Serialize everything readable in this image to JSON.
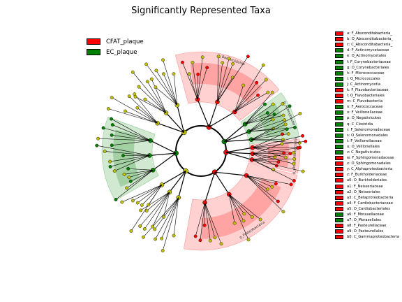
{
  "chart_data": {
    "type": "cladogram",
    "title": "Significantly Represented Taxa",
    "colors": {
      "CFAT_plaque": "#ff0000",
      "EC_plaque": "#008000",
      "neutral": "#c0c000"
    },
    "legend": {
      "placement": "top-left",
      "entries": [
        {
          "name": "CFAT_plaque",
          "color": "#ff0000"
        },
        {
          "name": "EC_plaque",
          "color": "#008000"
        }
      ]
    },
    "clades": [
      {
        "label": "p_Bacteroidetes",
        "group": "CFAT_plaque",
        "start_deg": -105,
        "end_deg": -38
      },
      {
        "label": "p_Actinobacteria",
        "group": "EC_plaque",
        "start_deg": -36,
        "end_deg": -8
      },
      {
        "label": "p_Abscontidibacteria",
        "group": "CFAT_plaque",
        "start_deg": -7,
        "end_deg": 13
      },
      {
        "label": "p_Proteobacteria",
        "group": "CFAT_plaque",
        "start_deg": 14,
        "end_deg": 100
      },
      {
        "label": "",
        "group": "EC_plaque",
        "start_deg": 150,
        "end_deg": 200
      }
    ],
    "taxa_key": [
      {
        "letter": "a",
        "label": "F_Absconditabacteria_",
        "group": "CFAT_plaque"
      },
      {
        "letter": "b",
        "label": "O_Absconditabacteria_",
        "group": "CFAT_plaque"
      },
      {
        "letter": "c",
        "label": "C_Absconditabacteria_",
        "group": "CFAT_plaque"
      },
      {
        "letter": "d",
        "label": "F_Actinomycetaceae",
        "group": "EC_plaque"
      },
      {
        "letter": "e",
        "label": "O_Actinomycetales",
        "group": "EC_plaque"
      },
      {
        "letter": "f",
        "label": "F_Corynebacteriaceae",
        "group": "EC_plaque"
      },
      {
        "letter": "g",
        "label": "O_Corynebacteriales",
        "group": "EC_plaque"
      },
      {
        "letter": "h",
        "label": "F_Micrococcaceae",
        "group": "EC_plaque"
      },
      {
        "letter": "i",
        "label": "O_Micrococcales",
        "group": "EC_plaque"
      },
      {
        "letter": "j",
        "label": "C_Actinomycetia",
        "group": "EC_plaque"
      },
      {
        "letter": "k",
        "label": "F_Flavobacteriaceae",
        "group": "CFAT_plaque"
      },
      {
        "letter": "l",
        "label": "O_Flavobacteriales",
        "group": "CFAT_plaque"
      },
      {
        "letter": "m",
        "label": "C_Flavobacteriia",
        "group": "CFAT_plaque"
      },
      {
        "letter": "n",
        "label": "F_Aerococcaceae",
        "group": "EC_plaque"
      },
      {
        "letter": "o",
        "label": "F_Veillonellaceae",
        "group": "EC_plaque"
      },
      {
        "letter": "p",
        "label": "O_Negativicutes",
        "group": "EC_plaque"
      },
      {
        "letter": "q",
        "label": "C_Clostridia",
        "group": "EC_plaque"
      },
      {
        "letter": "r",
        "label": "F_Selenomonadaceae",
        "group": "EC_plaque"
      },
      {
        "letter": "s",
        "label": "O_Selenomonadales",
        "group": "EC_plaque"
      },
      {
        "letter": "t",
        "label": "F_Veillonellaceae",
        "group": "EC_plaque"
      },
      {
        "letter": "u",
        "label": "O_Veillonellales",
        "group": "EC_plaque"
      },
      {
        "letter": "v",
        "label": "C_Negativicutes",
        "group": "EC_plaque"
      },
      {
        "letter": "w",
        "label": "F_Sphingomonadaceae",
        "group": "CFAT_plaque"
      },
      {
        "letter": "x",
        "label": "O_Sphingomonadales",
        "group": "CFAT_plaque"
      },
      {
        "letter": "y",
        "label": "C_Alphaproteobacteria",
        "group": "CFAT_plaque"
      },
      {
        "letter": "z",
        "label": "F_Burkholderiaceae",
        "group": "CFAT_plaque"
      },
      {
        "letter": "a0",
        "label": "O_Burkholderiales",
        "group": "CFAT_plaque"
      },
      {
        "letter": "a1",
        "label": "F_Neisseriaceae",
        "group": "CFAT_plaque"
      },
      {
        "letter": "a2",
        "label": "O_Neisseriales",
        "group": "CFAT_plaque"
      },
      {
        "letter": "a3",
        "label": "C_Betaproteobacteria",
        "group": "CFAT_plaque"
      },
      {
        "letter": "a4",
        "label": "F_Cardiobacteriaceae",
        "group": "CFAT_plaque"
      },
      {
        "letter": "a5",
        "label": "O_Cardiobacteriales",
        "group": "CFAT_plaque"
      },
      {
        "letter": "a6",
        "label": "F_Moraxellaceae",
        "group": "EC_plaque"
      },
      {
        "letter": "a7",
        "label": "O_Moraxellales",
        "group": "EC_plaque"
      },
      {
        "letter": "a8",
        "label": "F_Pasteurellaceae",
        "group": "CFAT_plaque"
      },
      {
        "letter": "a9",
        "label": "O_Pasteurellales",
        "group": "CFAT_plaque"
      },
      {
        "letter": "b0",
        "label": "C_Gammaproteobacteria",
        "group": "CFAT_plaque"
      }
    ]
  }
}
